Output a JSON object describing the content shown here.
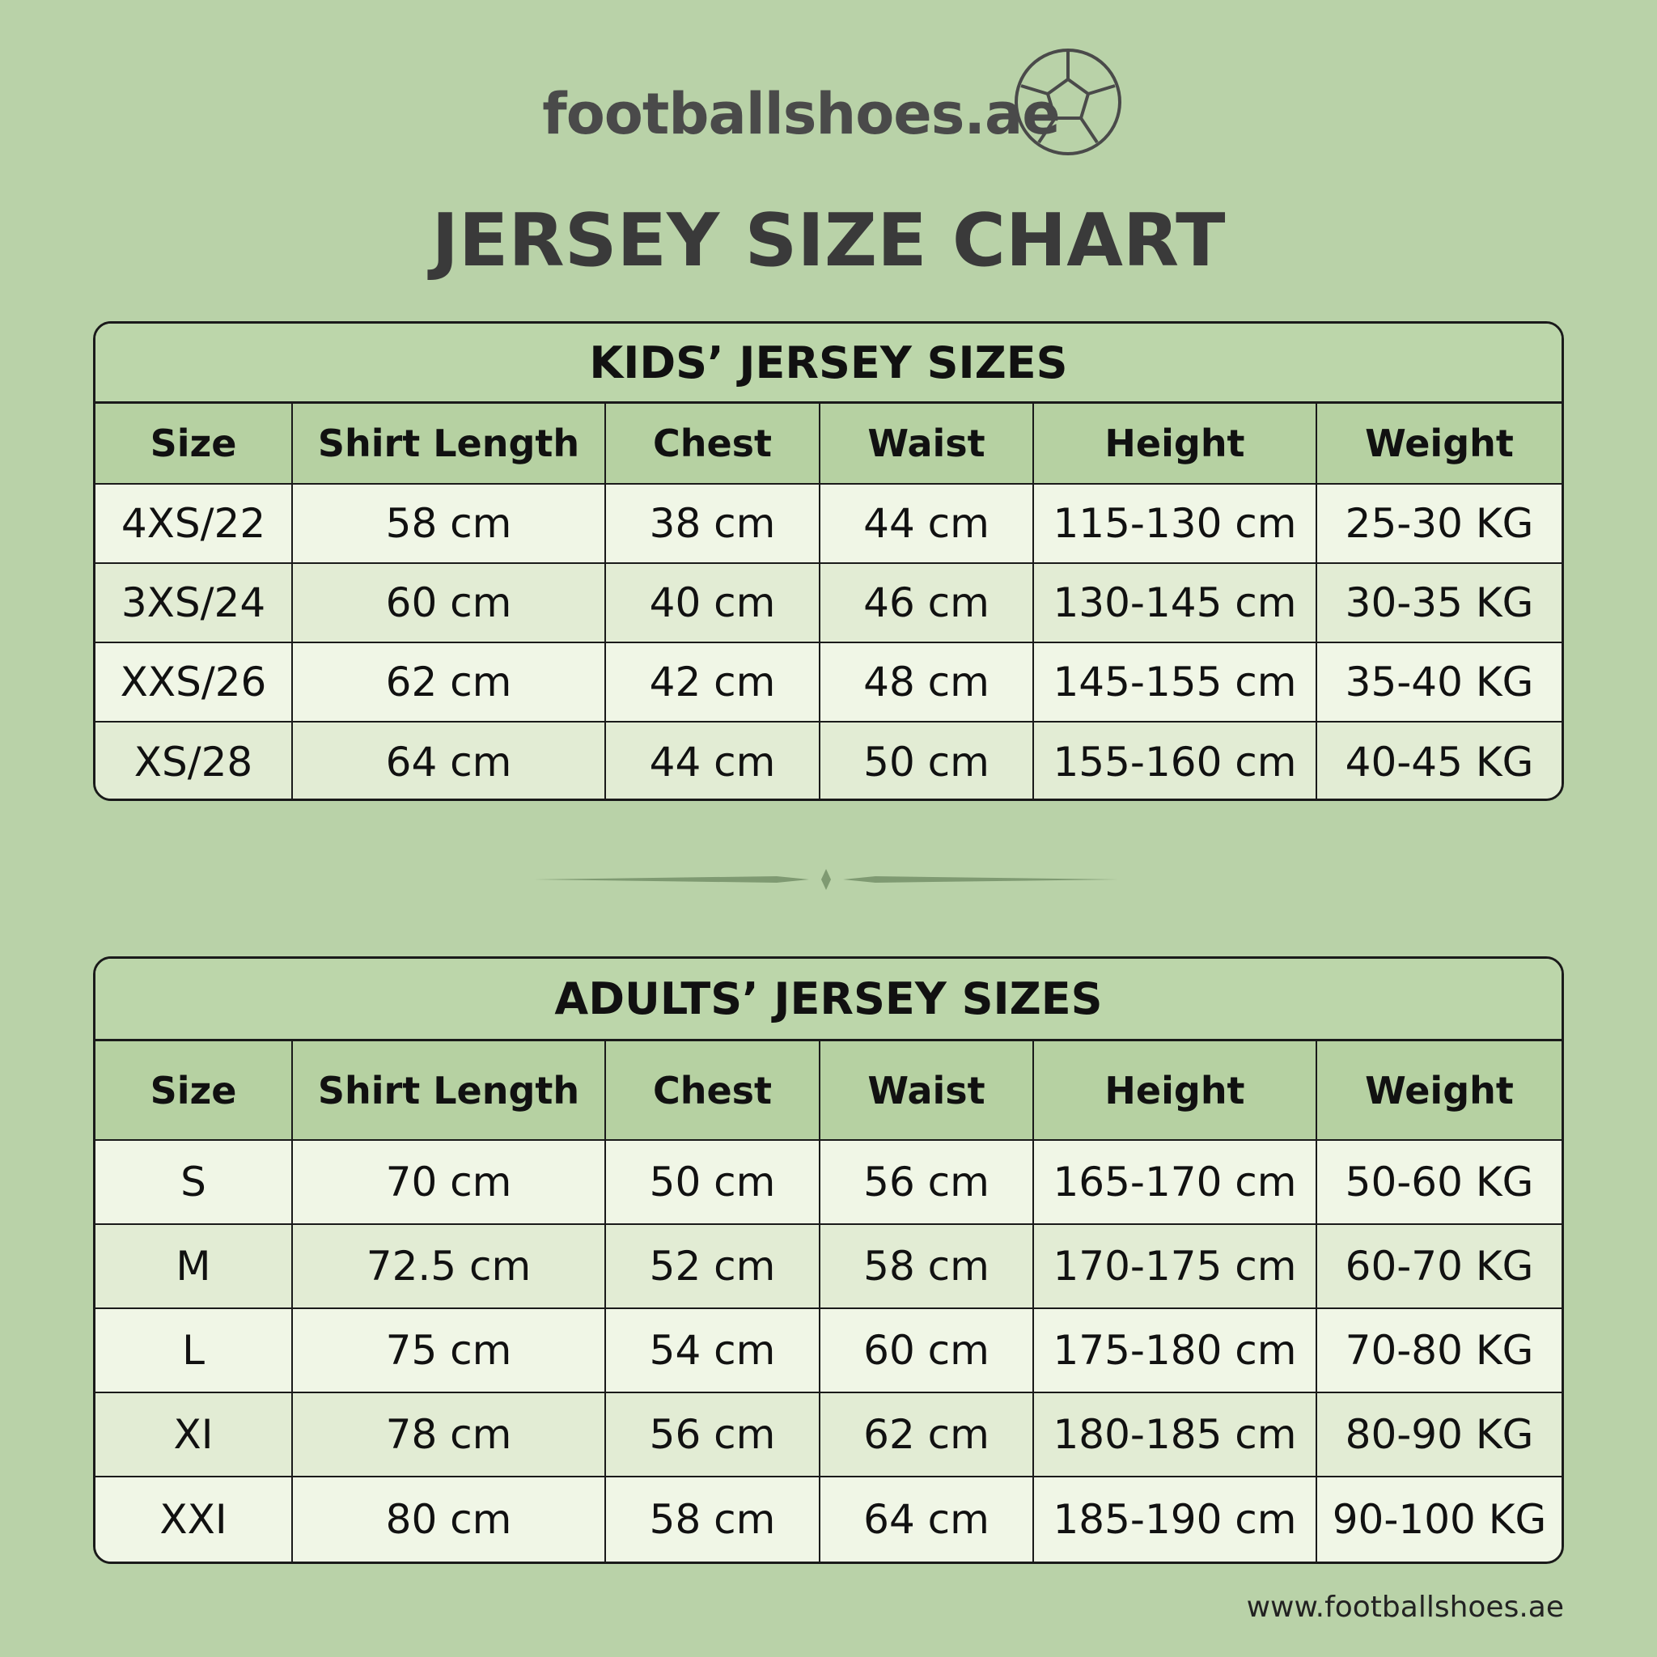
{
  "header": {
    "logo": "footballshoes.ae",
    "title": "JERSEY SIZE CHART"
  },
  "kids": {
    "title": "KIDS’ JERSEY SIZES",
    "columns": [
      "Size",
      "Shirt Length",
      "Chest",
      "Waist",
      "Height",
      "Weight"
    ],
    "rows": [
      [
        "4XS/22",
        "58 cm",
        "38 cm",
        "44 cm",
        "115-130 cm",
        "25-30 KG"
      ],
      [
        "3XS/24",
        "60 cm",
        "40 cm",
        "46 cm",
        "130-145 cm",
        "30-35 KG"
      ],
      [
        "XXS/26",
        "62 cm",
        "42 cm",
        "48 cm",
        "145-155 cm",
        "35-40 KG"
      ],
      [
        "XS/28",
        "64 cm",
        "44 cm",
        "50 cm",
        "155-160 cm",
        "40-45 KG"
      ]
    ]
  },
  "adults": {
    "title": "ADULTS’ JERSEY SIZES",
    "columns": [
      "Size",
      "Shirt Length",
      "Chest",
      "Waist",
      "Height",
      "Weight"
    ],
    "rows": [
      [
        "S",
        "70 cm",
        "50 cm",
        "56 cm",
        "165-170 cm",
        "50-60 KG"
      ],
      [
        "M",
        "72.5 cm",
        "52 cm",
        "58 cm",
        "170-175 cm",
        "60-70 KG"
      ],
      [
        "L",
        "75 cm",
        "54 cm",
        "60 cm",
        "175-180 cm",
        "70-80 KG"
      ],
      [
        "XI",
        "78 cm",
        "56 cm",
        "62 cm",
        "180-185 cm",
        "80-90 KG"
      ],
      [
        "XXI",
        "80 cm",
        "58 cm",
        "64 cm",
        "185-190 cm",
        "90-100 KG"
      ]
    ]
  },
  "footer": {
    "url": "www.footballshoes.ae"
  }
}
